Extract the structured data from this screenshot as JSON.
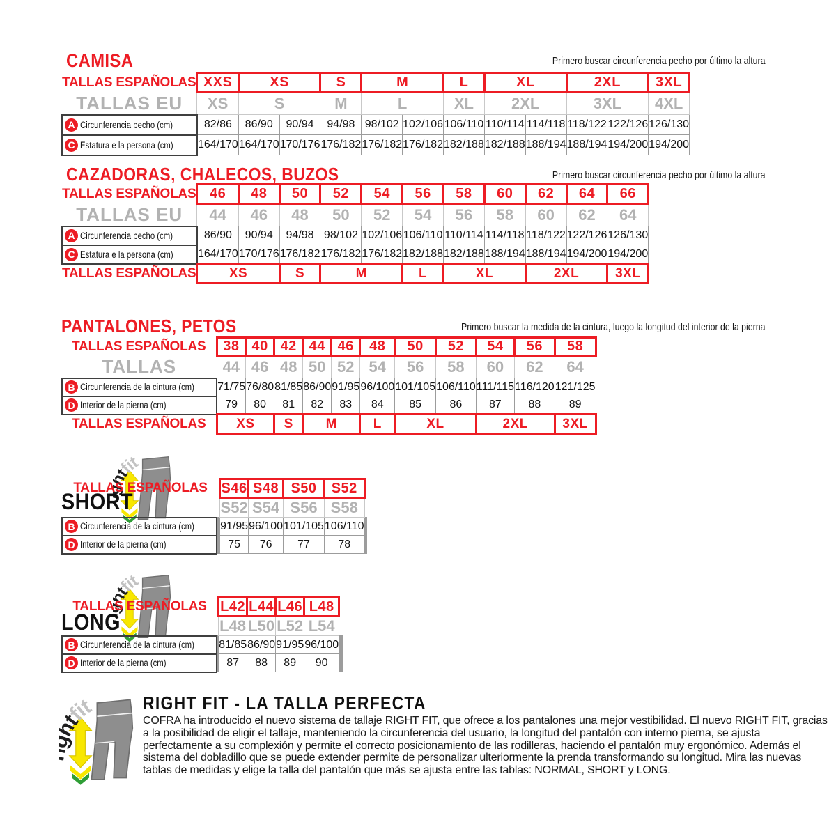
{
  "colors": {
    "red": "#ed1c24",
    "gray_text": "#b2b2b2",
    "yellow": "#f8e700",
    "green": "#2f9e36",
    "pants_gray": "#8e8e8e"
  },
  "camisa": {
    "title": "CAMISA",
    "note": "Primero buscar circunferencia pecho por último la altura",
    "es_label": "TALLAS ESPAÑOLAS",
    "eu_label": "TALLAS EU",
    "es_sizes": [
      {
        "t": "XXS",
        "s": 1
      },
      {
        "t": "XS",
        "s": 2
      },
      {
        "t": "S",
        "s": 1
      },
      {
        "t": "M",
        "s": 2
      },
      {
        "t": "L",
        "s": 1
      },
      {
        "t": "XL",
        "s": 2
      },
      {
        "t": "2XL",
        "s": 2
      },
      {
        "t": "3XL",
        "s": 1
      }
    ],
    "eu_sizes": [
      {
        "t": "XS",
        "s": 1
      },
      {
        "t": "S",
        "s": 2
      },
      {
        "t": "M",
        "s": 1
      },
      {
        "t": "L",
        "s": 2
      },
      {
        "t": "XL",
        "s": 1
      },
      {
        "t": "2XL",
        "s": 2
      },
      {
        "t": "3XL",
        "s": 2
      },
      {
        "t": "4XL",
        "s": 1
      }
    ],
    "rows": [
      {
        "icon": "A",
        "label": "Circunferencia pecho (cm)",
        "values": [
          "82/86",
          "86/90",
          "90/94",
          "94/98",
          "98/102",
          "102/106",
          "106/110",
          "110/114",
          "114/118",
          "118/122",
          "122/126",
          "126/130"
        ]
      },
      {
        "icon": "C",
        "label": "Estatura e la persona (cm)",
        "values": [
          "164/170",
          "164/170",
          "170/176",
          "176/182",
          "176/182",
          "176/182",
          "182/188",
          "182/188",
          "188/194",
          "188/194",
          "194/200",
          "194/200"
        ]
      }
    ]
  },
  "cazadoras": {
    "title": "CAZADORAS, CHALECOS, BUZOS",
    "note": "Primero buscar circunferencia pecho por último la altura",
    "es_label": "TALLAS ESPAÑOLAS",
    "eu_label": "TALLAS EU",
    "es_sizes": [
      "46",
      "48",
      "50",
      "52",
      "54",
      "56",
      "58",
      "60",
      "62",
      "64",
      "66"
    ],
    "eu_sizes": [
      "44",
      "46",
      "48",
      "50",
      "52",
      "54",
      "56",
      "58",
      "60",
      "62",
      "64"
    ],
    "rows": [
      {
        "icon": "A",
        "label": "Circunferencia pecho (cm)",
        "values": [
          "86/90",
          "90/94",
          "94/98",
          "98/102",
          "102/106",
          "106/110",
          "110/114",
          "114/118",
          "118/122",
          "122/126",
          "126/130"
        ]
      },
      {
        "icon": "C",
        "label": "Estatura e la persona (cm)",
        "values": [
          "164/170",
          "170/176",
          "176/182",
          "176/182",
          "176/182",
          "182/188",
          "182/188",
          "188/194",
          "188/194",
          "194/200",
          "194/200"
        ]
      }
    ],
    "bottom_label": "TALLAS ESPAÑOLAS",
    "bottom_sizes": [
      {
        "t": "XS",
        "s": 2
      },
      {
        "t": "S",
        "s": 1
      },
      {
        "t": "M",
        "s": 2
      },
      {
        "t": "L",
        "s": 1
      },
      {
        "t": "XL",
        "s": 2
      },
      {
        "t": "2XL",
        "s": 2
      },
      {
        "t": "3XL",
        "s": 1
      }
    ]
  },
  "pantalones": {
    "title": "PANTALONES, PETOS",
    "note": "Primero buscar la medida de la cintura, luego la longitud del interior de la pierna",
    "es_label": "TALLAS ESPAÑOLAS",
    "eu_label": "TALLAS",
    "es_sizes": [
      "38",
      "40",
      "42",
      "44",
      "46",
      "48",
      "50",
      "52",
      "54",
      "56",
      "58"
    ],
    "eu_sizes": [
      "44",
      "46",
      "48",
      "50",
      "52",
      "54",
      "56",
      "58",
      "60",
      "62",
      "64"
    ],
    "rows": [
      {
        "icon": "B",
        "label": "Circunferencia de la cintura (cm)",
        "values": [
          "71/75",
          "76/80",
          "81/85",
          "86/90",
          "91/95",
          "96/100",
          "101/105",
          "106/110",
          "111/115",
          "116/120",
          "121/125"
        ]
      },
      {
        "icon": "D",
        "label": "Interior de la pierna (cm)",
        "values": [
          "79",
          "80",
          "81",
          "82",
          "83",
          "84",
          "85",
          "86",
          "87",
          "88",
          "89"
        ]
      }
    ],
    "bottom_label": "TALLAS ESPAÑOLAS",
    "bottom_sizes": [
      {
        "t": "XS",
        "s": 2
      },
      {
        "t": "S",
        "s": 1
      },
      {
        "t": "M",
        "s": 2
      },
      {
        "t": "L",
        "s": 1
      },
      {
        "t": "XL",
        "s": 2
      },
      {
        "t": "2XL",
        "s": 2
      },
      {
        "t": "3XL",
        "s": 1
      }
    ]
  },
  "short": {
    "heading": "SHORT",
    "es_label": "TALLAS ESPAÑOLAS",
    "lead_empty": 4,
    "trail_empty": 3,
    "sizes_red": [
      "S46",
      "S48",
      "S50",
      "S52"
    ],
    "sizes_gray": [
      "S52",
      "S54",
      "S56",
      "S58"
    ],
    "rows": [
      {
        "icon": "B",
        "label": "Circunferencia de la cintura (cm)",
        "values": [
          "91/95",
          "96/100",
          "101/105",
          "106/110"
        ]
      },
      {
        "icon": "D",
        "label": "Interior de la pierna (cm)",
        "values": [
          "75",
          "76",
          "77",
          "78"
        ]
      }
    ],
    "logo_text_1": "right",
    "logo_text_2": "fit"
  },
  "long": {
    "heading": "LONG",
    "es_label": "TALLAS ESPAÑOLAS",
    "lead_empty": 2,
    "trail_empty": 5,
    "sizes_red": [
      "L42",
      "L44",
      "L46",
      "L48"
    ],
    "sizes_gray": [
      "L48",
      "L50",
      "L52",
      "L54"
    ],
    "rows": [
      {
        "icon": "B",
        "label": "Circunferencia de la cintura (cm)",
        "values": [
          "81/85",
          "86/90",
          "91/95",
          "96/100"
        ]
      },
      {
        "icon": "D",
        "label": "Interior de la pierna (cm)",
        "values": [
          "87",
          "88",
          "89",
          "90"
        ]
      }
    ],
    "logo_text_1": "right",
    "logo_text_2": "fit"
  },
  "rightfit": {
    "heading": "RIGHT FIT - LA TALLA PERFECTA",
    "logo_text_1": "right",
    "logo_text_2": "fit",
    "paragraph": "COFRA ha introducido el nuevo sistema de tallaje RIGHT FIT, que ofrece a los pantalones una mejor vestibilidad. El nuevo RIGHT FIT, gracias a la posibilidad de eligir el tallaje, manteniendo la circunferencia del usuario, la longitud del pantalón con interno pierna, se ajusta perfectamente a su complexión y permite el correcto posicionamiento de las rodilleras, haciendo el pantalón muy ergonómico. Además el sistema del dobladillo que se puede extender permite de personalizar ulteriormente la prenda transformando su longitud. Mira las nuevas tablas de medidas y elige la talla del pantalón que más se ajusta entre las tablas: NORMAL, SHORT y LONG."
  }
}
